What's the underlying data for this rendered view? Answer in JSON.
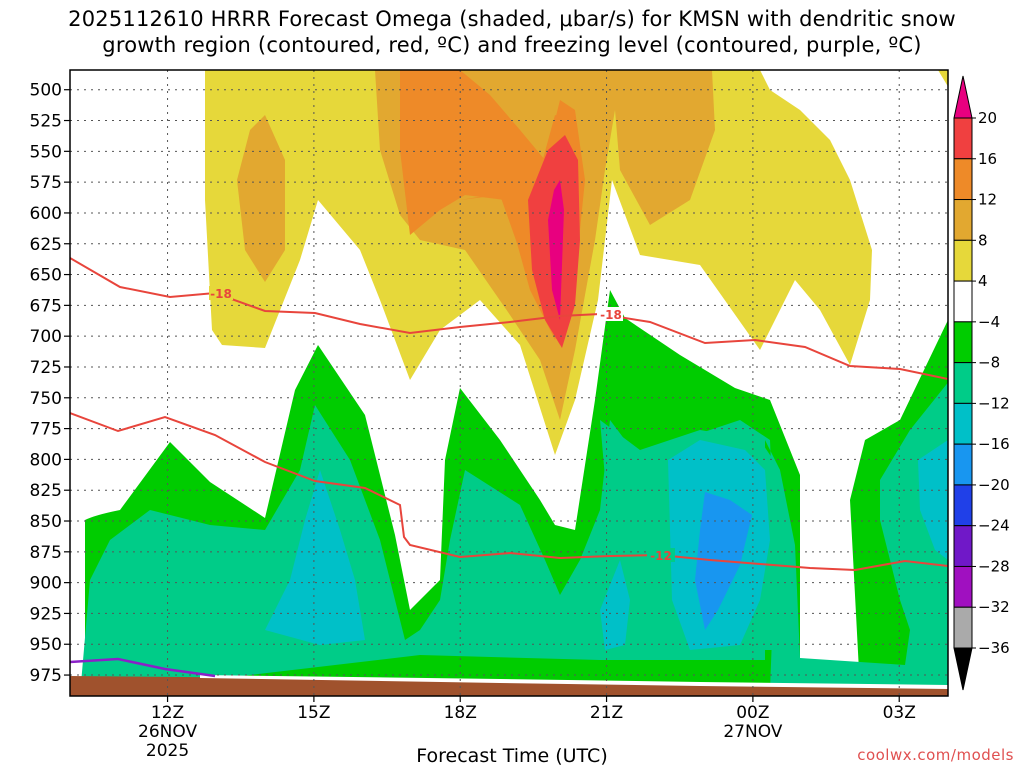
{
  "chart_data": {
    "type": "heatmap",
    "title_line1": "2025112610 HRRR Forecast Omega (shaded, μbar/s) for KMSN with dendritic snow",
    "title_line2": "growth region (contoured, red, ºC) and freezing level (contoured, purple, ºC)",
    "xlabel": "Forecast Time (UTC)",
    "credit": "coolwx.com/models",
    "y_pressure_levels": [
      500,
      525,
      550,
      575,
      600,
      625,
      650,
      675,
      700,
      725,
      750,
      775,
      800,
      825,
      850,
      875,
      900,
      925,
      950,
      975
    ],
    "y_range_hpa": [
      484,
      992
    ],
    "x_ticks": [
      {
        "hour": 12,
        "label": "12Z",
        "sub1": "26NOV",
        "sub2": "2025"
      },
      {
        "hour": 15,
        "label": "15Z",
        "sub1": "",
        "sub2": ""
      },
      {
        "hour": 18,
        "label": "18Z",
        "sub1": "",
        "sub2": ""
      },
      {
        "hour": 21,
        "label": "21Z",
        "sub1": "",
        "sub2": ""
      },
      {
        "hour": 24,
        "label": "00Z",
        "sub1": "27NOV",
        "sub2": ""
      },
      {
        "hour": 27,
        "label": "03Z",
        "sub1": "",
        "sub2": ""
      }
    ],
    "x_range_hours": [
      10,
      28
    ],
    "colorbar": {
      "labels": [
        "20",
        "16",
        "12",
        "8",
        "4",
        "−4",
        "−8",
        "−12",
        "−16",
        "−20",
        "−24",
        "−28",
        "−32",
        "−36"
      ],
      "colors": [
        "#e8007f",
        "#f04040",
        "#ee8a28",
        "#e2a830",
        "#e6d83a",
        "#ffffff",
        "#00cc00",
        "#00cc88",
        "#00c0c8",
        "#1896f0",
        "#2040e8",
        "#7018c8",
        "#a010c0",
        "#aaaaaa",
        "#000000"
      ]
    },
    "contours": {
      "dendritic_upper_c": -18,
      "dendritic_lower_c": -12,
      "freezing_level_c": 0,
      "labels": [
        "-18",
        "-18",
        "-12"
      ]
    },
    "colors": {
      "dendritic_line": "#e8453c",
      "freezing_line": "#8a20c8",
      "ground": "#a0522d"
    }
  }
}
